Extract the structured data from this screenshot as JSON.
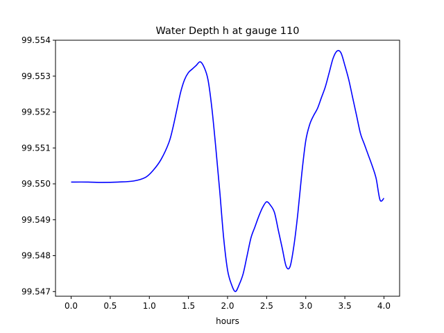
{
  "chart_data": {
    "type": "line",
    "title": "Water Depth h at gauge 110",
    "xlabel": "hours",
    "ylabel": "",
    "xlim": [
      -0.2,
      4.2
    ],
    "ylim": [
      99.54687,
      99.554
    ],
    "x_ticks": [
      0.0,
      0.5,
      1.0,
      1.5,
      2.0,
      2.5,
      3.0,
      3.5,
      4.0
    ],
    "x_tick_labels": [
      "0.0",
      "0.5",
      "1.0",
      "1.5",
      "2.0",
      "2.5",
      "3.0",
      "3.5",
      "4.0"
    ],
    "y_ticks": [
      99.547,
      99.548,
      99.549,
      99.55,
      99.551,
      99.552,
      99.553,
      99.554
    ],
    "y_tick_labels": [
      "99.547",
      "99.548",
      "99.549",
      "99.550",
      "99.551",
      "99.552",
      "99.553",
      "99.554"
    ],
    "grid": false,
    "series": [
      {
        "color": "#0000ff",
        "x": [
          0.0,
          0.2,
          0.4,
          0.6,
          0.8,
          0.95,
          1.05,
          1.15,
          1.25,
          1.3,
          1.35,
          1.4,
          1.45,
          1.5,
          1.55,
          1.6,
          1.65,
          1.7,
          1.75,
          1.8,
          1.85,
          1.9,
          1.95,
          2.0,
          2.05,
          2.1,
          2.15,
          2.2,
          2.25,
          2.3,
          2.35,
          2.4,
          2.45,
          2.5,
          2.55,
          2.6,
          2.65,
          2.7,
          2.75,
          2.8,
          2.85,
          2.9,
          2.95,
          3.0,
          3.05,
          3.1,
          3.15,
          3.2,
          3.25,
          3.3,
          3.35,
          3.4,
          3.45,
          3.5,
          3.55,
          3.6,
          3.65,
          3.7,
          3.75,
          3.8,
          3.85,
          3.9,
          3.95,
          4.0
        ],
        "y": [
          99.55005,
          99.55005,
          99.55004,
          99.55005,
          99.55008,
          99.55018,
          99.55038,
          99.55068,
          99.55115,
          99.55155,
          99.55205,
          99.55255,
          99.5529,
          99.5531,
          99.5532,
          99.5533,
          99.5534,
          99.55325,
          99.5529,
          99.5521,
          99.551,
          99.5498,
          99.5485,
          99.5476,
          99.5472,
          99.547,
          99.5472,
          99.5475,
          99.548,
          99.5485,
          99.5488,
          99.5491,
          99.54935,
          99.5495,
          99.5494,
          99.5492,
          99.5487,
          99.5482,
          99.5477,
          99.5477,
          99.5483,
          99.5492,
          99.5503,
          99.5512,
          99.55165,
          99.5519,
          99.5521,
          99.5524,
          99.5527,
          99.5531,
          99.5535,
          99.5537,
          99.55365,
          99.5533,
          99.5529,
          99.5524,
          99.5519,
          99.5514,
          99.5511,
          99.5508,
          99.5505,
          99.55015,
          99.54955,
          99.5496
        ]
      }
    ]
  }
}
